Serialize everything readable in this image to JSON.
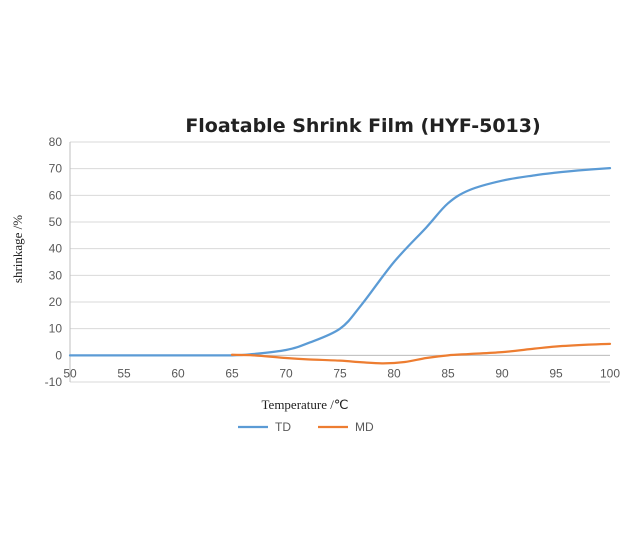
{
  "chart_data": {
    "type": "line",
    "title": "Floatable Shrink Film (HYF-5013)",
    "xlabel": "Temperature /℃",
    "ylabel": "shrinkage /%",
    "xlim": [
      50,
      100
    ],
    "ylim": [
      -10,
      80
    ],
    "x_ticks": [
      50,
      55,
      60,
      65,
      70,
      75,
      80,
      85,
      90,
      95,
      100
    ],
    "y_ticks": [
      -10,
      0,
      10,
      20,
      30,
      40,
      50,
      60,
      70,
      80
    ],
    "grid": "horizontal",
    "legend": "bottom",
    "series": [
      {
        "name": "TD",
        "color": "#5b9bd5",
        "points": [
          [
            50,
            0
          ],
          [
            55,
            0
          ],
          [
            60,
            0
          ],
          [
            65,
            0
          ],
          [
            67,
            0.5
          ],
          [
            70,
            2
          ],
          [
            72,
            4.5
          ],
          [
            75,
            10
          ],
          [
            77,
            19
          ],
          [
            80,
            35
          ],
          [
            83,
            48
          ],
          [
            85,
            57
          ],
          [
            87,
            62
          ],
          [
            90,
            65.5
          ],
          [
            93,
            67.5
          ],
          [
            95,
            68.5
          ],
          [
            97,
            69.3
          ],
          [
            100,
            70.2
          ]
        ]
      },
      {
        "name": "MD",
        "color": "#ed7d31",
        "points": [
          [
            65,
            0.2
          ],
          [
            67,
            0
          ],
          [
            70,
            -1
          ],
          [
            72,
            -1.5
          ],
          [
            75,
            -2
          ],
          [
            77,
            -2.6
          ],
          [
            79,
            -3
          ],
          [
            81,
            -2.5
          ],
          [
            83,
            -1
          ],
          [
            85,
            0
          ],
          [
            87,
            0.5
          ],
          [
            90,
            1.2
          ],
          [
            93,
            2.5
          ],
          [
            95,
            3.3
          ],
          [
            98,
            4
          ],
          [
            100,
            4.3
          ]
        ]
      }
    ]
  }
}
